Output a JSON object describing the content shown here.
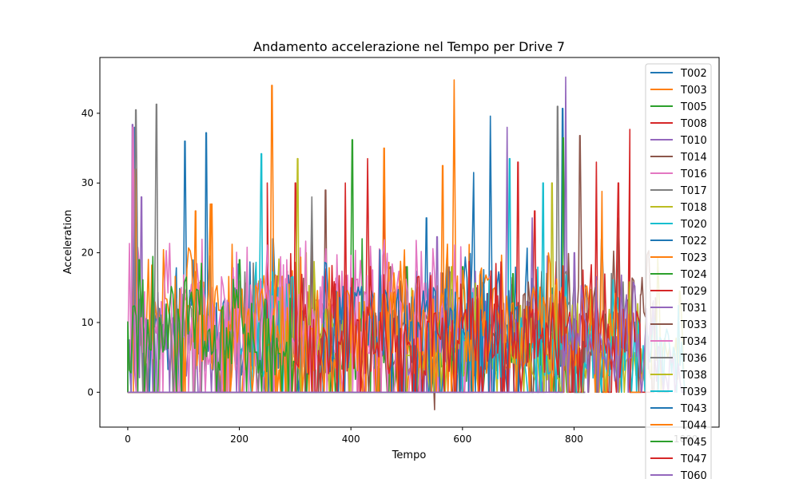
{
  "chart_data": {
    "type": "line",
    "title": "Andamento accelerazione nel Tempo per Drive 7",
    "xlabel": "Tempo",
    "ylabel": "Acceleration",
    "xlim": [
      -50,
      1060
    ],
    "ylim": [
      -5,
      48
    ],
    "xticks": [
      0,
      200,
      400,
      600,
      800,
      1000
    ],
    "yticks": [
      0,
      10,
      20,
      30,
      40
    ],
    "legend_position": "right",
    "series": [
      {
        "name": "T002",
        "color": "#1f77b4",
        "x_range": [
          0,
          320
        ],
        "peaks": [
          [
            12,
            38
          ],
          [
            103,
            36
          ],
          [
            140,
            37.2
          ],
          [
            260,
            22
          ]
        ],
        "baseline": 8
      },
      {
        "name": "T003",
        "color": "#ff7f0e",
        "x_range": [
          10,
          330
        ],
        "peaks": [
          [
            14,
            32
          ],
          [
            258,
            44
          ],
          [
            150,
            27
          ]
        ],
        "baseline": 10
      },
      {
        "name": "T005",
        "color": "#2ca02c",
        "x_range": [
          300,
          560
        ],
        "peaks": [
          [
            403,
            36.2
          ],
          [
            420,
            22
          ],
          [
            500,
            18
          ]
        ],
        "baseline": 6
      },
      {
        "name": "T008",
        "color": "#d62728",
        "x_range": [
          250,
          520
        ],
        "peaks": [
          [
            250,
            30
          ],
          [
            300,
            30
          ],
          [
            430,
            33.5
          ],
          [
            460,
            30
          ]
        ],
        "baseline": 8
      },
      {
        "name": "T010",
        "color": "#9467bd",
        "x_range": [
          0,
          200
        ],
        "peaks": [
          [
            8,
            38.4
          ],
          [
            25,
            28
          ]
        ],
        "baseline": 6
      },
      {
        "name": "T014",
        "color": "#8c564b",
        "x_range": [
          300,
          600
        ],
        "peaks": [
          [
            330,
            22
          ],
          [
            355,
            29
          ],
          [
            550,
            -2.5
          ]
        ],
        "baseline": 7
      },
      {
        "name": "T016",
        "color": "#e377c2",
        "x_range": [
          0,
          600
        ],
        "peaks": [
          [
            10,
            38
          ],
          [
            60,
            13
          ],
          [
            520,
            15
          ]
        ],
        "baseline": 10
      },
      {
        "name": "T017",
        "color": "#7f7f7f",
        "x_range": [
          0,
          400
        ],
        "peaks": [
          [
            14,
            40.5
          ],
          [
            52,
            41.3
          ],
          [
            330,
            28
          ]
        ],
        "baseline": 8
      },
      {
        "name": "T018",
        "color": "#bcbd22",
        "x_range": [
          250,
          400
        ],
        "peaks": [
          [
            305,
            33.5
          ],
          [
            320,
            20
          ]
        ],
        "baseline": 8
      },
      {
        "name": "T020",
        "color": "#17becf",
        "x_range": [
          200,
          300
        ],
        "peaks": [
          [
            240,
            34.2
          ],
          [
            270,
            15
          ]
        ],
        "baseline": 7
      },
      {
        "name": "T022",
        "color": "#1f77b4",
        "x_range": [
          500,
          800
        ],
        "peaks": [
          [
            535,
            25
          ],
          [
            620,
            31.5
          ],
          [
            650,
            39.6
          ],
          [
            780,
            40.7
          ]
        ],
        "baseline": 9
      },
      {
        "name": "T023",
        "color": "#ff7f0e",
        "x_range": [
          450,
          650
        ],
        "peaks": [
          [
            460,
            35
          ],
          [
            565,
            32.5
          ],
          [
            585,
            44.8
          ]
        ],
        "baseline": 10
      },
      {
        "name": "T024",
        "color": "#2ca02c",
        "x_range": [
          550,
          800
        ],
        "peaks": [
          [
            600,
            18
          ],
          [
            690,
            17
          ],
          [
            780,
            36.5
          ]
        ],
        "baseline": 5
      },
      {
        "name": "T029",
        "color": "#d62728",
        "x_range": [
          600,
          900
        ],
        "peaks": [
          [
            700,
            33
          ],
          [
            730,
            26
          ],
          [
            840,
            33
          ],
          [
            900,
            37.7
          ]
        ],
        "baseline": 7
      },
      {
        "name": "T031",
        "color": "#9467bd",
        "x_range": [
          500,
          800
        ],
        "peaks": [
          [
            555,
            22.3
          ],
          [
            680,
            38
          ],
          [
            725,
            25
          ],
          [
            785,
            45.2
          ]
        ],
        "baseline": 8
      },
      {
        "name": "T033",
        "color": "#8c564b",
        "x_range": [
          700,
          950
        ],
        "peaks": [
          [
            810,
            36.8
          ],
          [
            880,
            25
          ],
          [
            920,
            14
          ]
        ],
        "baseline": 10
      },
      {
        "name": "T034",
        "color": "#e377c2",
        "x_range": [
          100,
          650
        ],
        "peaks": [
          [
            150,
            13
          ],
          [
            520,
            15
          ],
          [
            640,
            10
          ]
        ],
        "baseline": 10
      },
      {
        "name": "T036",
        "color": "#7f7f7f",
        "x_range": [
          750,
          900
        ],
        "peaks": [
          [
            770,
            41
          ],
          [
            850,
            22
          ]
        ],
        "baseline": 6
      },
      {
        "name": "T038",
        "color": "#bcbd22",
        "x_range": [
          500,
          1000
        ],
        "peaks": [
          [
            580,
            18
          ],
          [
            760,
            30
          ],
          [
            950,
            19.3
          ],
          [
            990,
            14.5
          ]
        ],
        "baseline": 5
      },
      {
        "name": "T039",
        "color": "#17becf",
        "x_range": [
          600,
          1000
        ],
        "peaks": [
          [
            685,
            33.5
          ],
          [
            745,
            30
          ],
          [
            930,
            9
          ]
        ],
        "baseline": 6
      },
      {
        "name": "T043",
        "color": "#1f77b4",
        "x_range": [
          350,
          700
        ],
        "peaks": [
          [
            400,
            15
          ],
          [
            520,
            10
          ]
        ],
        "baseline": 9
      },
      {
        "name": "T044",
        "color": "#ff7f0e",
        "x_range": [
          100,
          900
        ],
        "peaks": [
          [
            122,
            26
          ],
          [
            148,
            27
          ],
          [
            850,
            28.8
          ]
        ],
        "baseline": 9
      },
      {
        "name": "T045",
        "color": "#2ca02c",
        "x_range": [
          0,
          300
        ],
        "peaks": [
          [
            20,
            19
          ],
          [
            200,
            19
          ]
        ],
        "baseline": 8
      },
      {
        "name": "T047",
        "color": "#d62728",
        "x_range": [
          300,
          920
        ],
        "peaks": [
          [
            390,
            30
          ],
          [
            880,
            30
          ]
        ],
        "baseline": 7
      },
      {
        "name": "T060",
        "color": "#9467bd",
        "x_range": [
          780,
          1000
        ],
        "peaks": [
          [
            800,
            20
          ],
          [
            930,
            12
          ]
        ],
        "baseline": 5
      }
    ]
  }
}
